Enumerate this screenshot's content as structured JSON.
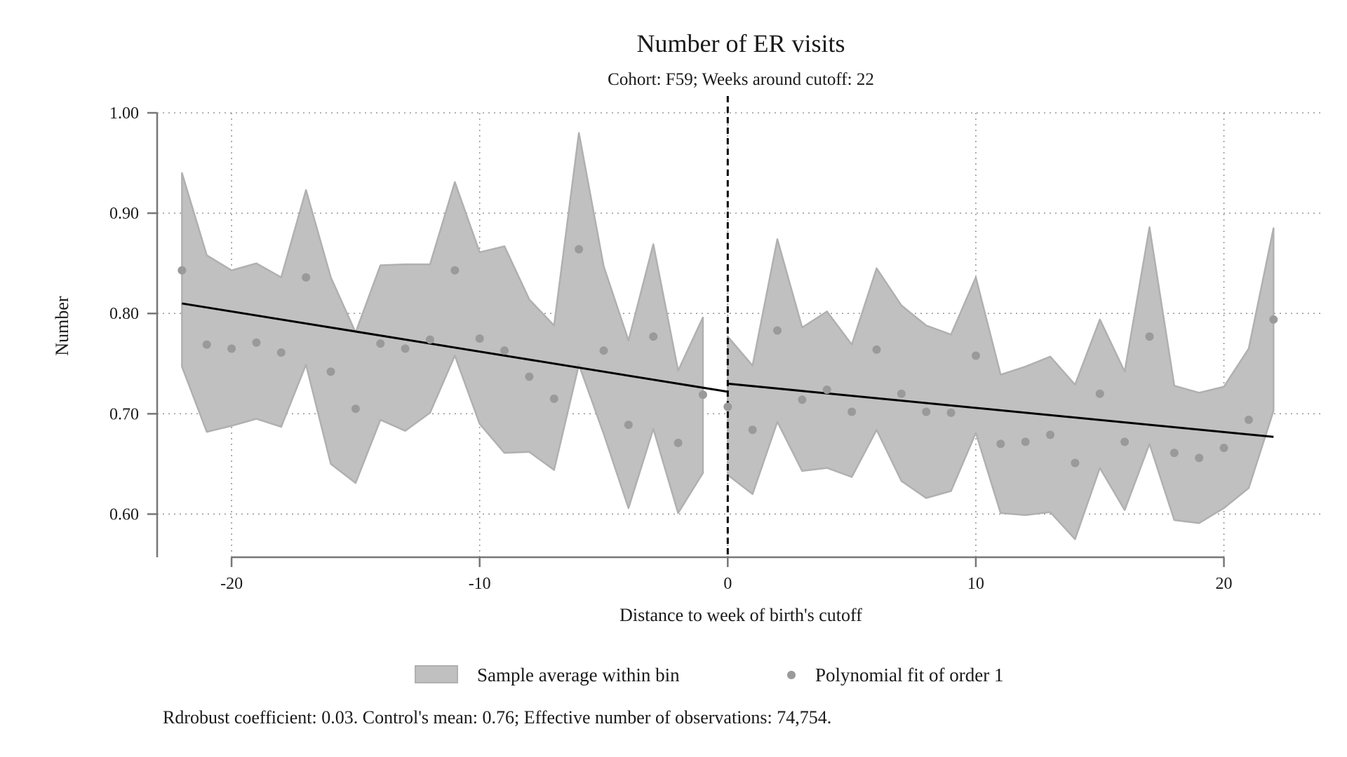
{
  "chart_data": {
    "type": "scatter",
    "title": "Number of ER visits",
    "subtitle": "Cohort: F59; Weeks around cutoff: 22",
    "xlabel": "Distance to week of birth's cutoff",
    "ylabel": "Number",
    "xlim": [
      -23,
      24
    ],
    "ylim": [
      0.557,
      1.0
    ],
    "xticks": [
      -20,
      -10,
      0,
      10,
      20
    ],
    "xtick_labels": [
      "-20",
      "-10",
      "0",
      "10",
      "20"
    ],
    "yticks": [
      0.6,
      0.7,
      0.8,
      0.9,
      1.0
    ],
    "ytick_labels": [
      "0.60",
      "0.70",
      "0.80",
      "0.90",
      "1.00"
    ],
    "grid": true,
    "cutoff": 0,
    "legend": [
      "Sample average within bin",
      "Polynomial fit of order 1"
    ],
    "legend_position": "bottom",
    "note": "Rdrobust coefficient: 0.03. Control's mean: 0.76; Effective number of observations: 74,754.",
    "colors": {
      "band_fill": "#c0c0c0",
      "band_stroke": "#b0b0b0",
      "points": "#9a9a9a",
      "fit_line": "#000000",
      "axis": "#777777",
      "grid": "#999999"
    },
    "series": [
      {
        "name": "Sample average within bin",
        "kind": "band",
        "segments": [
          {
            "x": [
              -22,
              -21,
              -20,
              -19,
              -18,
              -17,
              -16,
              -15,
              -14,
              -13,
              -12,
              -11,
              -10,
              -9,
              -8,
              -7,
              -6,
              -5,
              -4,
              -3,
              -2,
              -1
            ],
            "upper": [
              0.94,
              0.858,
              0.843,
              0.85,
              0.836,
              0.923,
              0.836,
              0.781,
              0.848,
              0.849,
              0.849,
              0.931,
              0.861,
              0.867,
              0.814,
              0.788,
              0.98,
              0.847,
              0.773,
              0.869,
              0.743,
              0.796
            ],
            "lower": [
              0.747,
              0.682,
              0.688,
              0.695,
              0.687,
              0.749,
              0.65,
              0.631,
              0.694,
              0.683,
              0.701,
              0.758,
              0.69,
              0.661,
              0.662,
              0.644,
              0.749,
              0.68,
              0.606,
              0.685,
              0.601,
              0.641
            ]
          },
          {
            "x": [
              0,
              1,
              2,
              3,
              4,
              5,
              6,
              7,
              8,
              9,
              10,
              11,
              12,
              13,
              14,
              15,
              16,
              17,
              18,
              19,
              20,
              21,
              22
            ],
            "upper": [
              0.777,
              0.748,
              0.874,
              0.786,
              0.802,
              0.769,
              0.845,
              0.808,
              0.788,
              0.779,
              0.836,
              0.739,
              0.747,
              0.757,
              0.729,
              0.794,
              0.742,
              0.886,
              0.728,
              0.721,
              0.727,
              0.765,
              0.885
            ],
            "lower": [
              0.639,
              0.62,
              0.692,
              0.643,
              0.646,
              0.637,
              0.684,
              0.633,
              0.616,
              0.623,
              0.681,
              0.601,
              0.599,
              0.602,
              0.575,
              0.646,
              0.604,
              0.67,
              0.594,
              0.591,
              0.606,
              0.626,
              0.703
            ]
          }
        ]
      },
      {
        "name": "Polynomial fit of order 1",
        "kind": "points",
        "x": [
          -22,
          -21,
          -20,
          -19,
          -18,
          -17,
          -16,
          -15,
          -14,
          -13,
          -12,
          -11,
          -10,
          -9,
          -8,
          -7,
          -6,
          -5,
          -4,
          -3,
          -2,
          -1,
          0,
          1,
          2,
          3,
          4,
          5,
          6,
          7,
          8,
          9,
          10,
          11,
          12,
          13,
          14,
          15,
          16,
          17,
          18,
          19,
          20,
          21,
          22
        ],
        "y": [
          0.843,
          0.769,
          0.765,
          0.771,
          0.761,
          0.836,
          0.742,
          0.705,
          0.77,
          0.765,
          0.774,
          0.843,
          0.775,
          0.763,
          0.737,
          0.715,
          0.864,
          0.763,
          0.689,
          0.777,
          0.671,
          0.719,
          0.707,
          0.684,
          0.783,
          0.714,
          0.724,
          0.702,
          0.764,
          0.72,
          0.702,
          0.701,
          0.758,
          0.67,
          0.672,
          0.679,
          0.651,
          0.72,
          0.672,
          0.777,
          0.661,
          0.656,
          0.666,
          0.694,
          0.794
        ]
      },
      {
        "kind": "fit_line",
        "segments": [
          {
            "x": [
              -22,
              0
            ],
            "y": [
              0.81,
              0.722
            ]
          },
          {
            "x": [
              0,
              22
            ],
            "y": [
              0.73,
              0.677
            ]
          }
        ]
      }
    ]
  }
}
